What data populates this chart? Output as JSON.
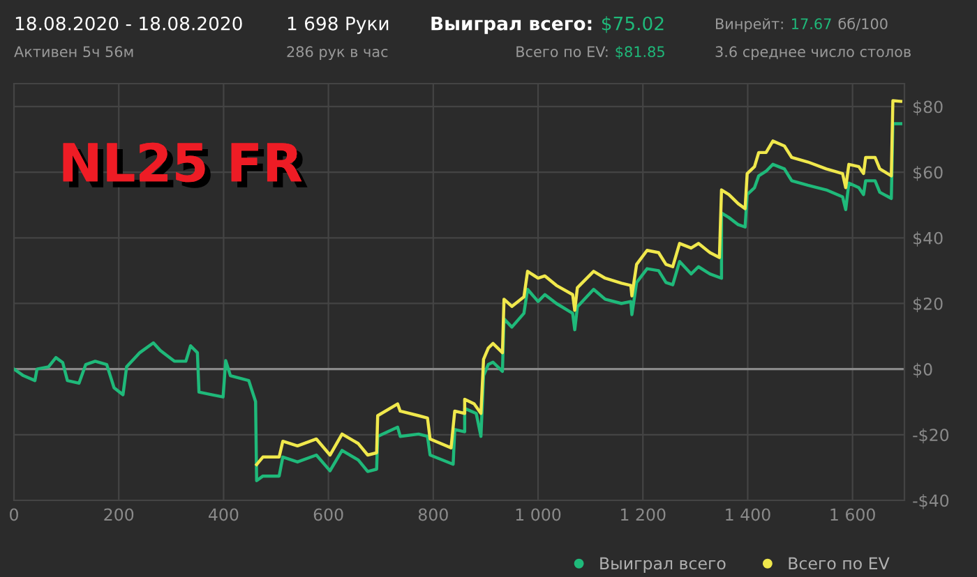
{
  "chart_data": {
    "type": "line",
    "annotations": [
      "18.08.2020 - 18.08.2020",
      "Активен 5ч 56м",
      "1 698 Руки",
      "286 рук в час",
      "Выиграл всего:",
      "$75.02",
      "Всего по EV:",
      "$81.85",
      "Винрейт:",
      "17.67",
      "бб/100",
      "3.6 среднее число столов",
      "NL25 FR"
    ],
    "series": [
      {
        "name": "Выиграл всего",
        "color": "#1fb97a",
        "x": [
          0,
          18,
          40,
          44,
          66,
          80,
          93,
          102,
          124,
          137,
          155,
          177,
          191,
          208,
          215,
          240,
          266,
          279,
          306,
          328,
          337,
          350,
          353,
          377,
          399,
          404,
          413,
          448,
          461,
          463,
          475,
          506,
          513,
          541,
          577,
          603,
          626,
          657,
          675,
          692,
          694,
          732,
          737,
          772,
          789,
          794,
          838,
          841,
          860,
          860,
          882,
          891,
          896,
          905,
          914,
          932,
          935,
          950,
          973,
          980,
          1000,
          1013,
          1035,
          1066,
          1070,
          1075,
          1106,
          1128,
          1159,
          1177,
          1179,
          1188,
          1208,
          1230,
          1244,
          1257,
          1270,
          1292,
          1306,
          1328,
          1350,
          1350,
          1364,
          1382,
          1395,
          1399,
          1413,
          1421,
          1435,
          1448,
          1470,
          1484,
          1515,
          1550,
          1581,
          1587,
          1593,
          1612,
          1621,
          1625,
          1643,
          1652,
          1674,
          1677,
          1692
        ],
        "values": [
          0,
          -2,
          -3.5,
          0,
          0.7,
          3.5,
          2,
          -3.5,
          -4.3,
          1.4,
          2.4,
          1.4,
          -5.7,
          -7.8,
          0.7,
          5,
          8,
          5.7,
          2.4,
          2.4,
          7.1,
          5,
          -7,
          -7.8,
          -8.5,
          2.6,
          -2,
          -3.5,
          -9.9,
          -34,
          -32.6,
          -32.6,
          -26.8,
          -28.3,
          -26.2,
          -31,
          -24.8,
          -27.7,
          -31.2,
          -30.5,
          -20.5,
          -17.7,
          -20.5,
          -19.8,
          -20.5,
          -26.2,
          -29,
          -18.4,
          -19.1,
          -12,
          -13.5,
          -20.5,
          -2,
          1.4,
          2.1,
          -0.7,
          15.3,
          12.8,
          17,
          24.3,
          20.6,
          22.7,
          20,
          17,
          12,
          19,
          24.3,
          21.3,
          20,
          20.6,
          16.6,
          26.4,
          30.6,
          30,
          26.4,
          25.7,
          32.8,
          29,
          31.2,
          29,
          27.7,
          47.6,
          46.2,
          44,
          43.3,
          53.2,
          55.3,
          58.9,
          60.3,
          62.4,
          61,
          57.4,
          56,
          54.6,
          52.5,
          48.6,
          56.7,
          55.3,
          53.2,
          57.4,
          57.4,
          53.9,
          52,
          74.8,
          74.8
        ]
      },
      {
        "name": "Всего по EV",
        "color": "#f0e84c",
        "x": [
          463,
          475,
          506,
          513,
          541,
          577,
          603,
          626,
          657,
          675,
          692,
          694,
          732,
          737,
          772,
          789,
          794,
          834,
          841,
          860,
          860,
          878,
          891,
          896,
          905,
          914,
          932,
          935,
          950,
          973,
          980,
          1000,
          1013,
          1035,
          1066,
          1070,
          1075,
          1106,
          1128,
          1159,
          1177,
          1179,
          1188,
          1208,
          1230,
          1244,
          1257,
          1270,
          1292,
          1306,
          1328,
          1346,
          1350,
          1364,
          1382,
          1395,
          1399,
          1413,
          1421,
          1435,
          1448,
          1470,
          1484,
          1515,
          1550,
          1581,
          1587,
          1593,
          1612,
          1621,
          1625,
          1643,
          1652,
          1674,
          1677,
          1692
        ],
        "values": [
          -29.1,
          -26.8,
          -26.8,
          -22,
          -23.4,
          -21.3,
          -26.2,
          -19.8,
          -22.7,
          -26.2,
          -25.5,
          -14.2,
          -10.6,
          -12.8,
          -14.2,
          -14.9,
          -21.3,
          -24,
          -12.8,
          -13.5,
          -9.2,
          -10.6,
          -13.5,
          3,
          6.4,
          7.8,
          5,
          21.3,
          19.1,
          22,
          29.8,
          27.7,
          28.4,
          25.5,
          22.7,
          17.9,
          24.8,
          29.8,
          27.7,
          26.2,
          25.5,
          22.3,
          31.9,
          36.2,
          35.5,
          31.9,
          31.2,
          38.3,
          36.9,
          38.3,
          35.5,
          34,
          54.6,
          53.2,
          50.4,
          48.9,
          59.6,
          61.7,
          66,
          66,
          69.5,
          68,
          64.5,
          63.1,
          61,
          59.6,
          55.3,
          62.4,
          61.7,
          59.6,
          64.5,
          64.5,
          61,
          58.9,
          81.8,
          81.6
        ]
      }
    ],
    "xlim": [
      0,
      1699
    ],
    "xticks": [
      0,
      200,
      400,
      600,
      800,
      {
        "value": 1000,
        "label": "1 000"
      },
      {
        "value": 1200,
        "label": "1 200"
      },
      {
        "value": 1400,
        "label": "1 400"
      },
      {
        "value": 1600,
        "label": "1 600"
      }
    ],
    "ylim": [
      -40,
      87
    ],
    "yticks": [
      {
        "value": -40,
        "label": "-$40"
      },
      {
        "value": -20,
        "label": "-$20"
      },
      {
        "value": 0,
        "label": "$0"
      },
      {
        "value": 20,
        "label": "$20"
      },
      {
        "value": 40,
        "label": "$40"
      },
      {
        "value": 60,
        "label": "$60"
      },
      {
        "value": 80,
        "label": "$80"
      }
    ],
    "ref_lines": [
      {
        "axis": "y",
        "value": 0,
        "color": "#8a8a8a"
      }
    ],
    "grid": true,
    "legend": "bottom right",
    "marker": "none",
    "line_style": "solid"
  }
}
